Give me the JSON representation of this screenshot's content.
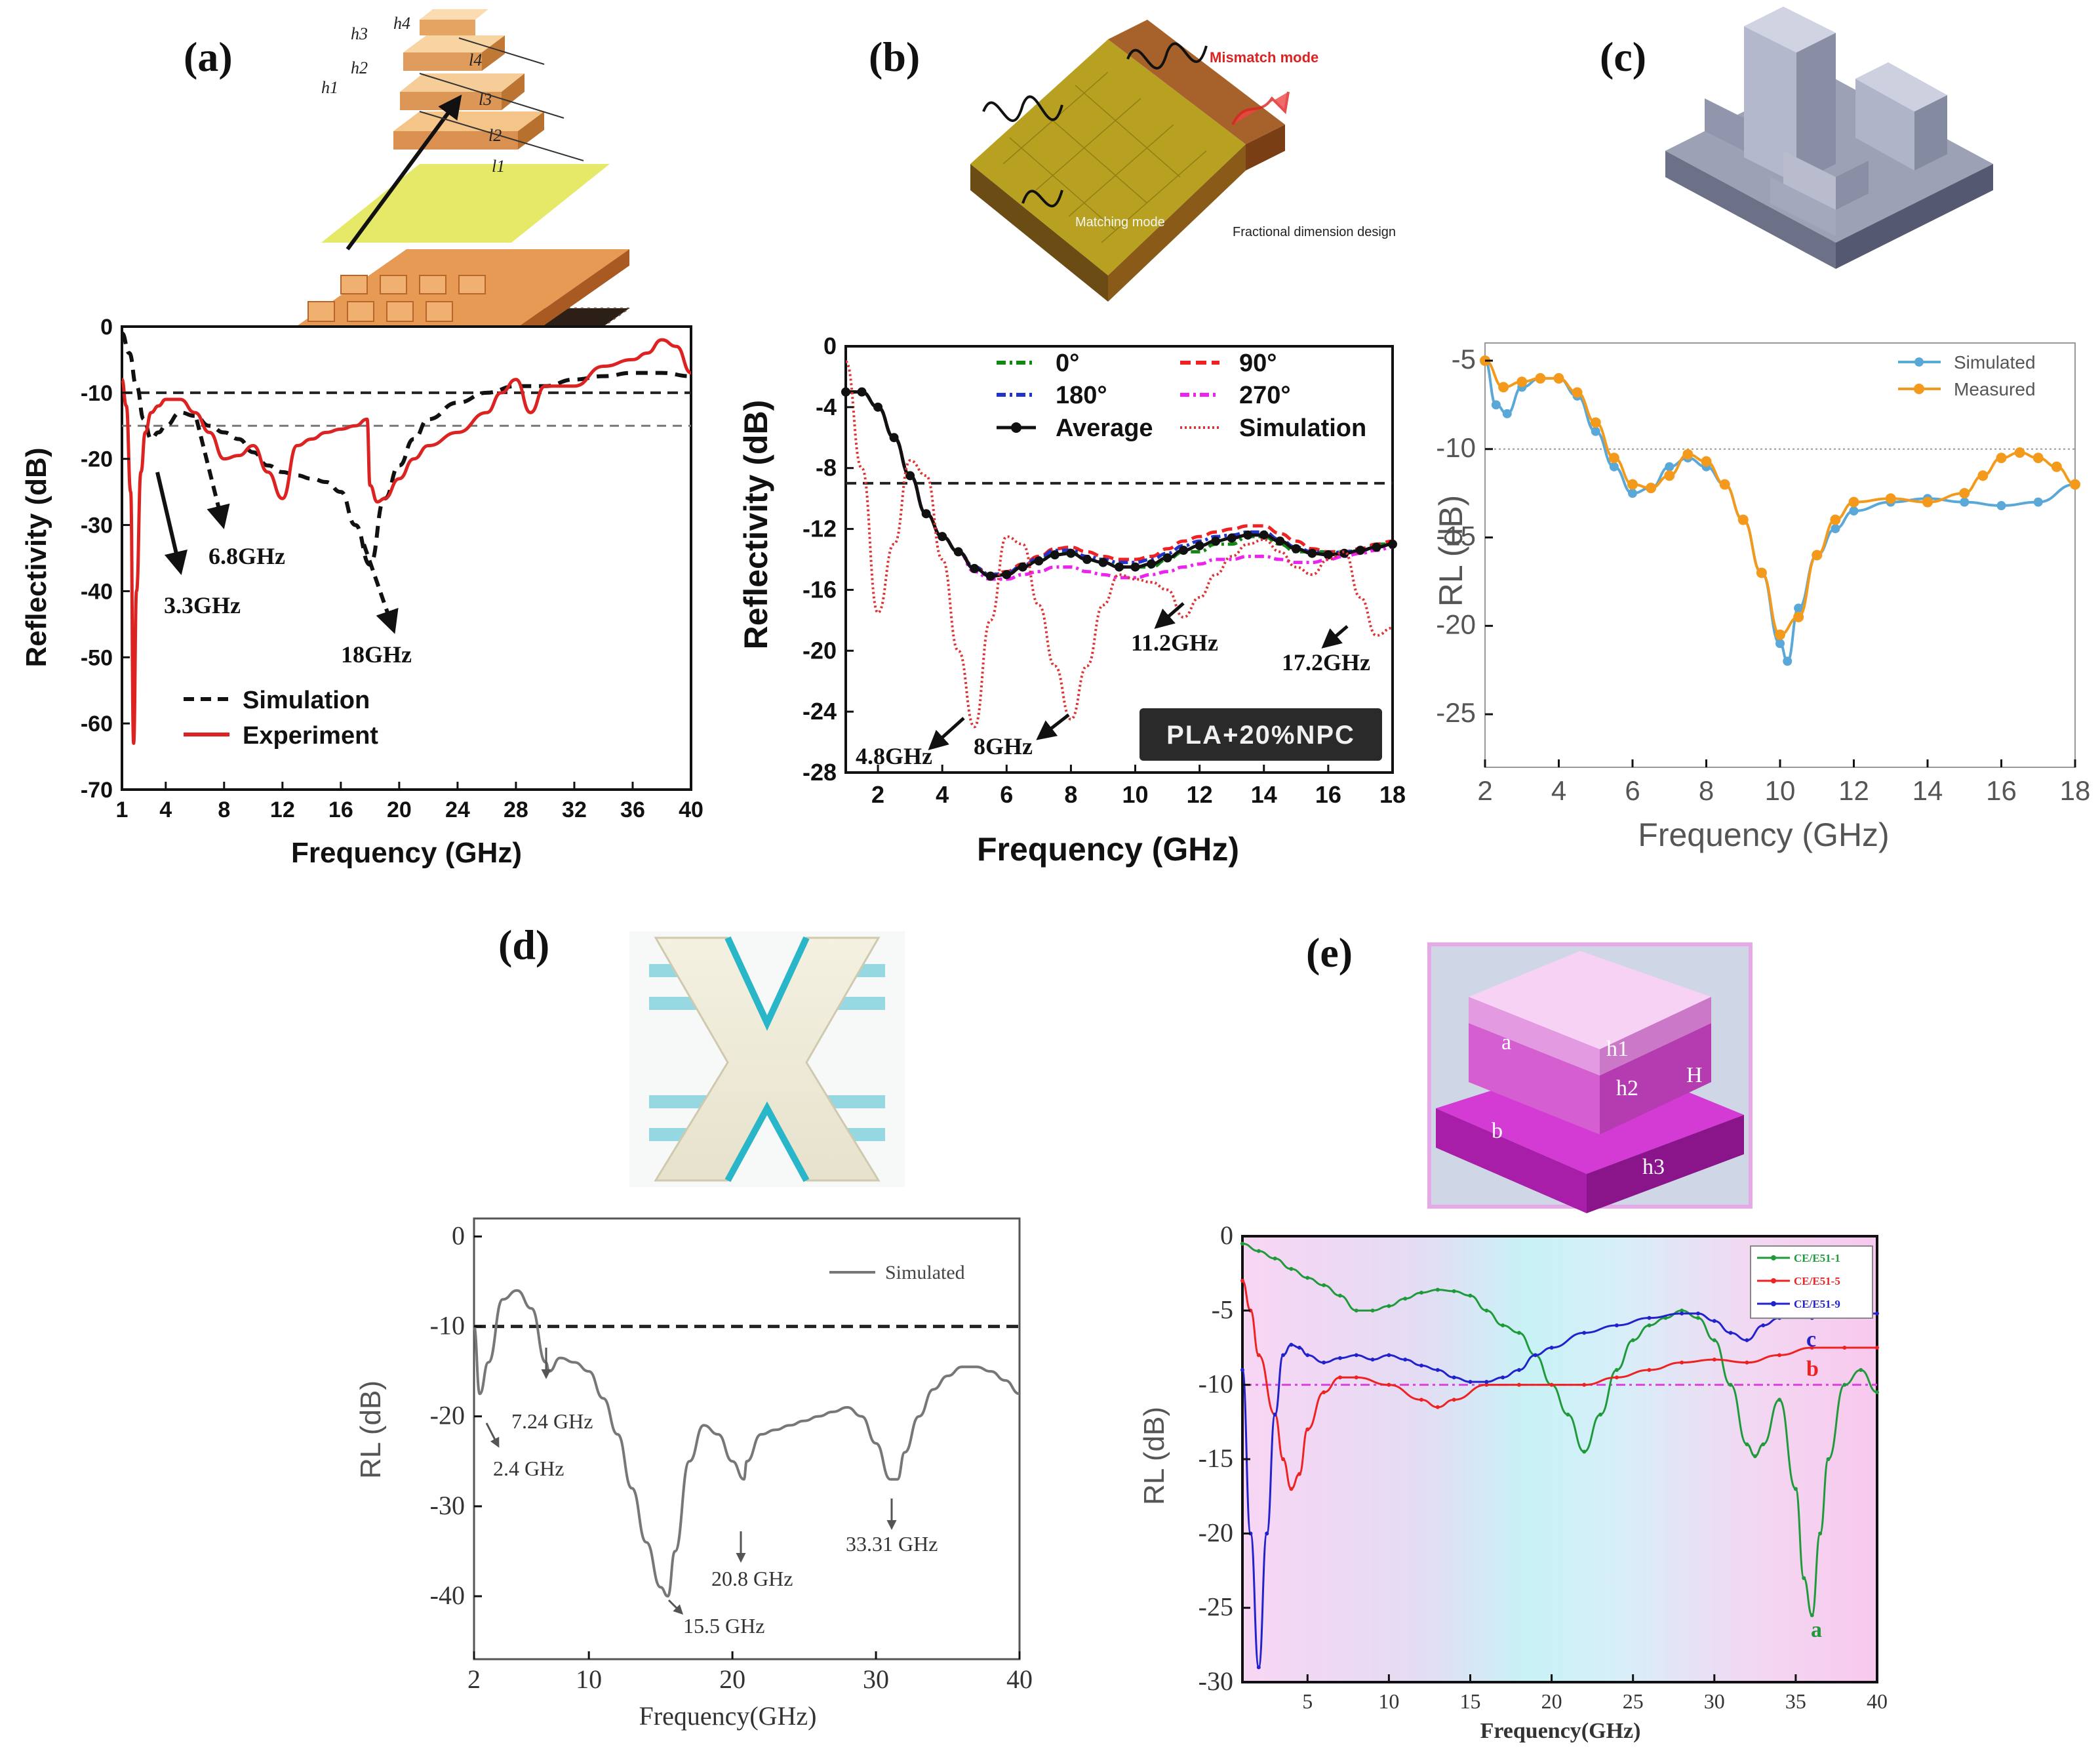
{
  "panels": {
    "a": {
      "label": "(a)"
    },
    "b": {
      "label": "(b)"
    },
    "c": {
      "label": "(c)"
    },
    "d": {
      "label": "(d)"
    },
    "e": {
      "label": "(e)"
    }
  },
  "illustrations": {
    "a": {
      "h4": "h4",
      "h3": "h3",
      "h2": "h2",
      "h1": "h1",
      "l4": "l4",
      "l3": "l3",
      "l2": "l2",
      "l1": "l1"
    },
    "b": {
      "mismatch": "Mismatch mode",
      "matching": "Matching mode",
      "fractional": "Fractional dimension design"
    },
    "e": {
      "a": "a",
      "b": "b",
      "h1": "h1",
      "h2": "h2",
      "h3": "h3",
      "H": "H"
    }
  },
  "colors": {
    "sim_a": "#111111",
    "exp_a": "#dd2222",
    "b_0": "#118811",
    "b_90": "#ee2222",
    "b_180": "#2233cc",
    "b_270": "#ee22ee",
    "b_avg": "#111111",
    "b_sim": "#dd3333",
    "c_sim": "#5aa8d8",
    "c_meas": "#f39a1c",
    "d_sim": "#777777",
    "e_a": "#1f9a3a",
    "e_b": "#ee2222",
    "e_c": "#2222cc"
  },
  "chart_data": [
    {
      "panel": "a",
      "type": "line",
      "xlabel": "Frequency (GHz)",
      "ylabel": "Reflectivity (dB)",
      "xlim": [
        1,
        40
      ],
      "ylim": [
        -70,
        0
      ],
      "xticks": [
        1,
        4,
        8,
        12,
        16,
        20,
        24,
        28,
        32,
        36,
        40
      ],
      "yticks": [
        0,
        -10,
        -20,
        -30,
        -40,
        -50,
        -60,
        -70
      ],
      "reference_lines": [
        -10,
        -15
      ],
      "series": [
        {
          "name": "Simulation",
          "style": "dashed",
          "x": [
            1,
            1.5,
            2,
            2.5,
            3,
            3.5,
            4,
            5,
            6,
            7,
            8,
            9,
            10,
            11,
            12,
            13,
            14,
            15,
            16,
            17,
            18,
            19,
            20,
            21,
            22,
            24,
            26,
            28,
            30,
            32,
            34,
            36,
            38,
            40
          ],
          "y": [
            -1,
            -4,
            -9,
            -14,
            -17,
            -16,
            -15,
            -13,
            -13.5,
            -15,
            -16,
            -17,
            -19,
            -21,
            -22,
            -22.5,
            -23,
            -23.5,
            -25,
            -30,
            -36,
            -26,
            -21,
            -17,
            -14,
            -11.5,
            -10,
            -9,
            -9,
            -8,
            -7.5,
            -7,
            -7,
            -7.5
          ]
        },
        {
          "name": "Experiment",
          "style": "solid",
          "x": [
            1,
            1.3,
            1.6,
            1.8,
            2,
            2.3,
            2.6,
            3,
            3.5,
            4,
            5,
            6,
            7,
            8,
            9,
            10,
            11,
            12,
            13,
            14,
            15,
            16,
            17,
            17.8,
            18,
            18.5,
            19,
            20,
            21,
            22,
            24,
            26,
            27,
            28,
            29,
            30,
            32,
            34,
            36,
            37,
            38,
            39,
            40
          ],
          "y": [
            -8,
            -12,
            -25,
            -63,
            -40,
            -22,
            -16,
            -13,
            -12,
            -11,
            -11,
            -13,
            -16,
            -20,
            -19.5,
            -18,
            -22,
            -26,
            -18,
            -17,
            -16,
            -15.5,
            -15,
            -14,
            -24,
            -26.5,
            -26,
            -23,
            -20,
            -18,
            -16,
            -13,
            -10,
            -8,
            -13,
            -9,
            -9,
            -6,
            -5,
            -4,
            -2,
            -3,
            -7
          ]
        }
      ],
      "annotations": [
        "3.3GHz",
        "6.8GHz",
        "18GHz"
      ]
    },
    {
      "panel": "b",
      "type": "line",
      "xlabel": "Frequency (GHz)",
      "ylabel": "Reflectivity (dB)",
      "xlim": [
        1,
        18
      ],
      "ylim": [
        -28,
        0
      ],
      "xticks": [
        2,
        4,
        6,
        8,
        10,
        12,
        14,
        16,
        18
      ],
      "yticks": [
        0,
        -4,
        -8,
        -12,
        -16,
        -20,
        -24,
        -28
      ],
      "reference_lines": [
        -9
      ],
      "x": [
        1,
        1.5,
        2,
        2.5,
        3,
        3.5,
        4,
        4.5,
        5,
        5.5,
        6,
        6.5,
        7,
        7.5,
        8,
        8.5,
        9,
        9.5,
        10,
        10.5,
        11,
        11.5,
        12,
        12.5,
        13,
        13.5,
        14,
        14.5,
        15,
        15.5,
        16,
        16.5,
        17,
        17.5,
        18
      ],
      "series": [
        {
          "name": "0°",
          "y": [
            -3,
            -3,
            -4,
            -6,
            -8.5,
            -11,
            -12.5,
            -13.5,
            -14.5,
            -15,
            -15,
            -14.5,
            -14,
            -13.5,
            -13.5,
            -14,
            -14,
            -14.5,
            -14.5,
            -14.5,
            -14,
            -13.5,
            -13.5,
            -13,
            -13,
            -12.5,
            -12.5,
            -13,
            -13.5,
            -13.5,
            -13.5,
            -13.5,
            -13.5,
            -13,
            -13
          ]
        },
        {
          "name": "90°",
          "y": [
            -3,
            -3,
            -4,
            -6,
            -8.5,
            -11,
            -12.5,
            -13.5,
            -14.5,
            -15,
            -14.8,
            -14.3,
            -13.8,
            -13.3,
            -13.2,
            -13.5,
            -13.8,
            -14,
            -14,
            -13.8,
            -13.3,
            -12.8,
            -12.5,
            -12.2,
            -12,
            -11.8,
            -11.8,
            -12.3,
            -12.8,
            -13.3,
            -13.5,
            -13.5,
            -13.3,
            -13,
            -12.8
          ]
        },
        {
          "name": "180°",
          "y": [
            -3,
            -3,
            -4,
            -6,
            -8.5,
            -11,
            -12.5,
            -13.5,
            -14.5,
            -15,
            -14.9,
            -14.4,
            -13.9,
            -13.4,
            -13.4,
            -13.8,
            -14,
            -14.2,
            -14.2,
            -14,
            -13.6,
            -13.1,
            -12.8,
            -12.5,
            -12.4,
            -12.2,
            -12.2,
            -12.7,
            -13.2,
            -13.5,
            -13.6,
            -13.5,
            -13.4,
            -13.2,
            -13
          ]
        },
        {
          "name": "270°",
          "y": [
            -3,
            -3,
            -4,
            -6,
            -8.5,
            -11,
            -12.5,
            -13.5,
            -14.8,
            -15.3,
            -15.3,
            -15,
            -14.8,
            -14.5,
            -14.5,
            -14.8,
            -15,
            -15.2,
            -15.2,
            -15,
            -14.8,
            -14.5,
            -14.3,
            -14,
            -14,
            -13.8,
            -13.8,
            -14,
            -14.2,
            -14.2,
            -14,
            -13.8,
            -13.6,
            -13.4,
            -13.2
          ]
        },
        {
          "name": "Average",
          "y": [
            -3,
            -3,
            -4,
            -6,
            -8.5,
            -11,
            -12.5,
            -13.5,
            -14.6,
            -15.1,
            -15,
            -14.5,
            -14.1,
            -13.7,
            -13.6,
            -14,
            -14.2,
            -14.5,
            -14.5,
            -14.3,
            -13.9,
            -13.4,
            -13.1,
            -12.8,
            -12.6,
            -12.4,
            -12.4,
            -12.8,
            -13.3,
            -13.6,
            -13.7,
            -13.6,
            -13.4,
            -13.2,
            -13
          ]
        },
        {
          "name": "Simulation",
          "y": [
            -1,
            -8,
            -17.5,
            -13,
            -7.5,
            -8.5,
            -14,
            -20,
            -25,
            -18,
            -12.5,
            -13,
            -17,
            -21,
            -24.5,
            -21,
            -17,
            -15,
            -15.3,
            -15.5,
            -16,
            -17.8,
            -16.5,
            -15,
            -13.8,
            -13,
            -12.7,
            -13.5,
            -14.5,
            -15,
            -14,
            -13.5,
            -16.5,
            -19,
            -18.5
          ]
        }
      ],
      "annotations": [
        "4.8GHz",
        "8GHz",
        "11.2GHz",
        "17.2GHz"
      ],
      "inset_label": "PLA+20%NPC"
    },
    {
      "panel": "c",
      "type": "line",
      "xlabel": "Frequency (GHz)",
      "ylabel": "RL (dB)",
      "xlim": [
        2,
        18
      ],
      "ylim": [
        -28,
        -4
      ],
      "xticks": [
        2,
        4,
        6,
        8,
        10,
        12,
        14,
        16,
        18
      ],
      "yticks": [
        -5,
        -10,
        -15,
        -20,
        -25
      ],
      "reference_lines": [
        -10
      ],
      "series": [
        {
          "name": "Simulated",
          "x": [
            2,
            2.3,
            2.6,
            3,
            3.5,
            4,
            4.5,
            5,
            5.5,
            6,
            6.5,
            7,
            7.5,
            8,
            8.5,
            9,
            9.5,
            10,
            10.2,
            10.5,
            11,
            11.5,
            12,
            13,
            14,
            15,
            16,
            17,
            18
          ],
          "y": [
            -5,
            -7.5,
            -8,
            -6.5,
            -6,
            -6,
            -7,
            -9,
            -11,
            -12.5,
            -12.2,
            -11,
            -10.5,
            -11,
            -12,
            -14,
            -17,
            -21,
            -22,
            -19,
            -16,
            -14.5,
            -13.5,
            -13,
            -12.8,
            -13,
            -13.2,
            -13,
            -12
          ]
        },
        {
          "name": "Measured",
          "x": [
            2,
            2.5,
            3,
            3.5,
            4,
            4.5,
            5,
            5.5,
            6,
            6.5,
            7,
            7.5,
            8,
            8.5,
            9,
            9.5,
            10,
            10.5,
            11,
            11.5,
            12,
            13,
            14,
            15,
            15.5,
            16,
            16.5,
            17,
            17.5,
            18
          ],
          "y": [
            -5,
            -6.5,
            -6.2,
            -6,
            -6,
            -6.8,
            -8.5,
            -10.5,
            -12,
            -12.2,
            -11.5,
            -10.3,
            -10.7,
            -12,
            -14,
            -17,
            -20.5,
            -19.5,
            -16,
            -14,
            -13,
            -12.8,
            -13,
            -12.5,
            -11.5,
            -10.5,
            -10.2,
            -10.5,
            -11,
            -12
          ]
        }
      ]
    },
    {
      "panel": "d",
      "type": "line",
      "xlabel": "Frequency(GHz)",
      "ylabel": "RL (dB)",
      "xlim": [
        2,
        40
      ],
      "ylim": [
        -47,
        2
      ],
      "xticks": [
        2,
        10,
        20,
        30,
        40
      ],
      "yticks": [
        0,
        -10,
        -20,
        -30,
        -40
      ],
      "reference_lines": [
        -10
      ],
      "series": [
        {
          "name": "Simulated",
          "x": [
            2,
            2.4,
            3,
            4,
            5,
            6,
            7,
            7.24,
            8,
            9,
            10,
            11,
            12,
            13,
            14,
            15,
            15.5,
            16,
            17,
            18,
            19,
            20,
            20.8,
            21,
            22,
            23,
            24,
            25,
            26,
            27,
            28,
            29,
            30,
            31,
            31.5,
            32,
            33,
            34,
            35,
            36,
            37,
            38,
            39,
            40
          ],
          "y": [
            -10,
            -17.5,
            -14,
            -7,
            -6,
            -8,
            -14,
            -15,
            -13.5,
            -14,
            -15,
            -18,
            -22,
            -28,
            -34,
            -39,
            -40,
            -35,
            -25,
            -21,
            -22,
            -25,
            -27,
            -25,
            -22,
            -21.5,
            -21,
            -20.5,
            -20,
            -19.5,
            -19,
            -20,
            -23,
            -27,
            -27,
            -24,
            -20,
            -17,
            -15.5,
            -14.5,
            -14.5,
            -15,
            -16,
            -17.5
          ]
        }
      ],
      "annotations": [
        "2.4 GHz",
        "7.24 GHz",
        "15.5 GHz",
        "20.8 GHz",
        "33.31 GHz"
      ]
    },
    {
      "panel": "e",
      "type": "line",
      "xlabel": "Frequency(GHz)",
      "ylabel": "RL (dB)",
      "xlim": [
        1,
        40
      ],
      "ylim": [
        -30,
        0
      ],
      "xticks": [
        5,
        10,
        15,
        20,
        25,
        30,
        35,
        40
      ],
      "yticks": [
        0,
        -5,
        -10,
        -15,
        -20,
        -25,
        -30
      ],
      "reference_lines": [
        -10
      ],
      "series": [
        {
          "name": "CE/E51-1",
          "mark": "a",
          "x": [
            1,
            2,
            3,
            4,
            5,
            6,
            7,
            8,
            9,
            10,
            11,
            12,
            13,
            14,
            15,
            16,
            17,
            18,
            19,
            20,
            21,
            22,
            23,
            24,
            25,
            26,
            27,
            28,
            29,
            30,
            31,
            32,
            32.5,
            33,
            34,
            35,
            35.5,
            36,
            36.5,
            37,
            38,
            39,
            40
          ],
          "y": [
            -0.5,
            -1,
            -1.5,
            -2.2,
            -2.8,
            -3.3,
            -4,
            -5,
            -5,
            -4.7,
            -4.2,
            -3.8,
            -3.6,
            -3.7,
            -4,
            -5,
            -6,
            -6.5,
            -8,
            -10,
            -12,
            -14.5,
            -12,
            -9,
            -7,
            -6,
            -5.5,
            -5,
            -5.5,
            -7,
            -10,
            -14,
            -14.8,
            -14,
            -11,
            -17,
            -23,
            -25.5,
            -20,
            -15,
            -10,
            -9,
            -10.5
          ]
        },
        {
          "name": "CE/E51-5",
          "mark": "b",
          "x": [
            1,
            1.5,
            2,
            3,
            3.5,
            4,
            4.5,
            5,
            6,
            7,
            8,
            10,
            12,
            13,
            14,
            16,
            18,
            20,
            22,
            24,
            26,
            28,
            30,
            32,
            34,
            36,
            38,
            40
          ],
          "y": [
            -3,
            -5,
            -8,
            -12,
            -15,
            -17,
            -16,
            -13,
            -10.5,
            -9.5,
            -9.5,
            -10,
            -11,
            -11.5,
            -11,
            -10,
            -10,
            -10,
            -10,
            -9.5,
            -9,
            -8.5,
            -8.3,
            -8.5,
            -8,
            -7.5,
            -7.5,
            -7.5
          ]
        },
        {
          "name": "CE/E51-9",
          "mark": "c",
          "x": [
            1,
            1.5,
            2,
            2.5,
            3,
            3.5,
            4,
            4.5,
            5,
            6,
            7,
            8,
            9,
            10,
            11,
            12,
            13,
            14,
            15,
            16,
            17,
            18,
            19,
            20,
            22,
            24,
            26,
            28,
            29,
            30,
            31,
            32,
            33,
            34,
            36,
            38,
            40
          ],
          "y": [
            -9,
            -20,
            -29,
            -20,
            -12,
            -8,
            -7.3,
            -7.5,
            -8,
            -8.5,
            -8.2,
            -8,
            -8.3,
            -8,
            -8.3,
            -8.7,
            -9,
            -9.5,
            -9.8,
            -9.8,
            -9.5,
            -9,
            -8,
            -7.5,
            -6.5,
            -6,
            -5.5,
            -5.2,
            -5.2,
            -5.7,
            -6.5,
            -7,
            -6,
            -5.5,
            -5.5,
            -5.3,
            -5.2
          ]
        }
      ]
    }
  ]
}
